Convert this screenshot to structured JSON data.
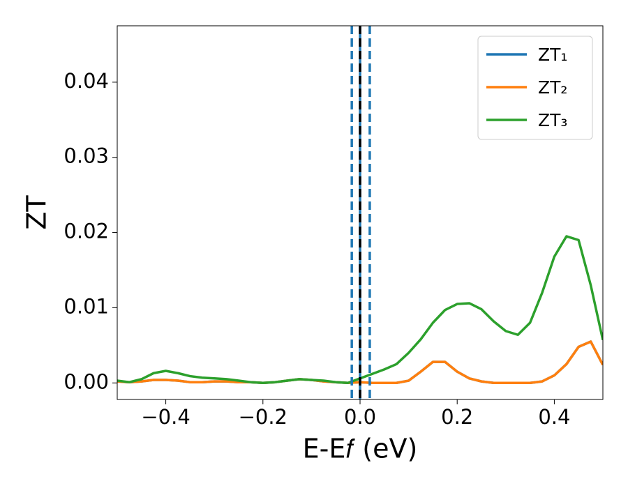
{
  "chart_data": {
    "type": "line",
    "xlabel": "E-E𝑓 (eV)",
    "ylabel": "ZT",
    "x": [
      -0.5,
      -0.475,
      -0.45,
      -0.425,
      -0.4,
      -0.375,
      -0.35,
      -0.325,
      -0.3,
      -0.275,
      -0.25,
      -0.225,
      -0.2,
      -0.175,
      -0.15,
      -0.125,
      -0.1,
      -0.075,
      -0.05,
      -0.025,
      0,
      0.025,
      0.05,
      0.075,
      0.1,
      0.125,
      0.15,
      0.175,
      0.2,
      0.225,
      0.25,
      0.275,
      0.3,
      0.325,
      0.35,
      0.375,
      0.4,
      0.425,
      0.45,
      0.475,
      0.5
    ],
    "series": [
      {
        "name": "ZT₁",
        "color": "#1f77b4",
        "values": [
          0.0002,
          0.0001,
          0.0002,
          0.0004,
          0.0004,
          0.0003,
          0.0001,
          0.0001,
          0.0002,
          0.0002,
          0.0001,
          0.0001,
          0,
          0.0001,
          0.0003,
          0.0005,
          0.0004,
          0.0002,
          0.0001,
          0,
          0.0001,
          0,
          0,
          0,
          0.0003,
          0.0015,
          0.0028,
          0.0028,
          0.0015,
          0.0006,
          0.0002,
          0,
          0,
          0,
          0,
          0.0002,
          0.001,
          0.0025,
          0.0048,
          0.0055,
          0.0024
        ]
      },
      {
        "name": "ZT₂",
        "color": "#ff7f0e",
        "values": [
          0.0002,
          0.0001,
          0.0002,
          0.0004,
          0.0004,
          0.0003,
          0.0001,
          0.0001,
          0.0002,
          0.0002,
          0.0001,
          0.0001,
          0,
          0.0001,
          0.0003,
          0.0005,
          0.0004,
          0.0002,
          0.0001,
          0,
          0.0001,
          0,
          0,
          0,
          0.0003,
          0.0015,
          0.0028,
          0.0028,
          0.0015,
          0.0006,
          0.0002,
          0,
          0,
          0,
          0,
          0.0002,
          0.001,
          0.0025,
          0.0048,
          0.0055,
          0.0024
        ]
      },
      {
        "name": "ZT₃",
        "color": "#2ca02c",
        "values": [
          0.0003,
          0.0001,
          0.0005,
          0.0013,
          0.0016,
          0.0013,
          0.0009,
          0.0007,
          0.0006,
          0.0005,
          0.0003,
          0.0001,
          0,
          0.0001,
          0.0003,
          0.0005,
          0.0004,
          0.0003,
          0.0001,
          0,
          0.0006,
          0.0012,
          0.0018,
          0.0025,
          0.004,
          0.0058,
          0.008,
          0.0097,
          0.0105,
          0.0106,
          0.0098,
          0.0082,
          0.0069,
          0.0064,
          0.008,
          0.012,
          0.0168,
          0.0195,
          0.019,
          0.013,
          0.0057
        ]
      }
    ],
    "vlines": [
      {
        "x": 0,
        "color": "#1f77b4",
        "style": "solid"
      },
      {
        "x": -0.017,
        "color": "#1f77b4",
        "style": "dashed"
      },
      {
        "x": 0.02,
        "color": "#1f77b4",
        "style": "dashed"
      },
      {
        "x": 0,
        "color": "#000000",
        "style": "dashed"
      }
    ],
    "xlim": [
      -0.5,
      0.5
    ],
    "ylim": [
      -0.0022,
      0.0475
    ],
    "xticks": [
      {
        "value": -0.4,
        "label": "−0.4"
      },
      {
        "value": -0.2,
        "label": "−0.2"
      },
      {
        "value": 0,
        "label": "0.0"
      },
      {
        "value": 0.2,
        "label": "0.2"
      },
      {
        "value": 0.4,
        "label": "0.4"
      }
    ],
    "yticks": [
      {
        "value": 0,
        "label": "0.00"
      },
      {
        "value": 0.01,
        "label": "0.01"
      },
      {
        "value": 0.02,
        "label": "0.02"
      },
      {
        "value": 0.03,
        "label": "0.03"
      },
      {
        "value": 0.04,
        "label": "0.04"
      }
    ],
    "legend": "upper right",
    "grid": false
  }
}
